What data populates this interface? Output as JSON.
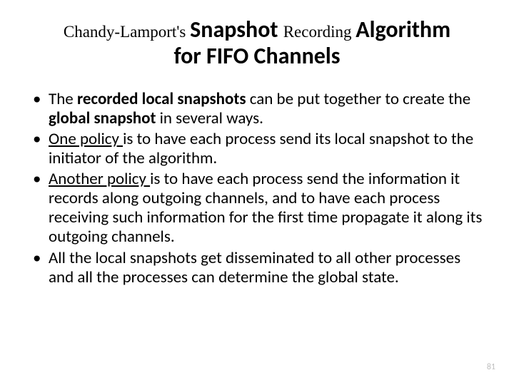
{
  "title": {
    "prefix": "Chandy-Lamport's ",
    "snapshot": "Snapshot ",
    "recording": "Recording ",
    "algorithm": "Algorithm",
    "line2": "for FIFO Channels"
  },
  "bullets": [
    {
      "segments": [
        {
          "text": "The ",
          "bold": false,
          "underline": false
        },
        {
          "text": "recorded local snapshots",
          "bold": true,
          "underline": false
        },
        {
          "text": " can be put together to create the ",
          "bold": false,
          "underline": false
        },
        {
          "text": "global snapshot",
          "bold": true,
          "underline": false
        },
        {
          "text": " in several ways.",
          "bold": false,
          "underline": false
        }
      ]
    },
    {
      "segments": [
        {
          "text": "One policy ",
          "bold": false,
          "underline": true
        },
        {
          "text": "is to have each process send its local snapshot to the initiator of the algorithm.",
          "bold": false,
          "underline": false
        }
      ]
    },
    {
      "segments": [
        {
          "text": "Another policy ",
          "bold": false,
          "underline": true
        },
        {
          "text": "is to have each process send the information it records along outgoing channels, and to have each process receiving such information for the first time propagate it along its outgoing channels.",
          "bold": false,
          "underline": false
        }
      ]
    },
    {
      "segments": [
        {
          "text": "All the local snapshots get disseminated to all other processes and all the processes can determine the global state.",
          "bold": false,
          "underline": false
        }
      ]
    }
  ],
  "pageNumber": "81",
  "colors": {
    "background": "#ffffff",
    "text": "#000000",
    "pageNumber": "#bfbfbf"
  }
}
